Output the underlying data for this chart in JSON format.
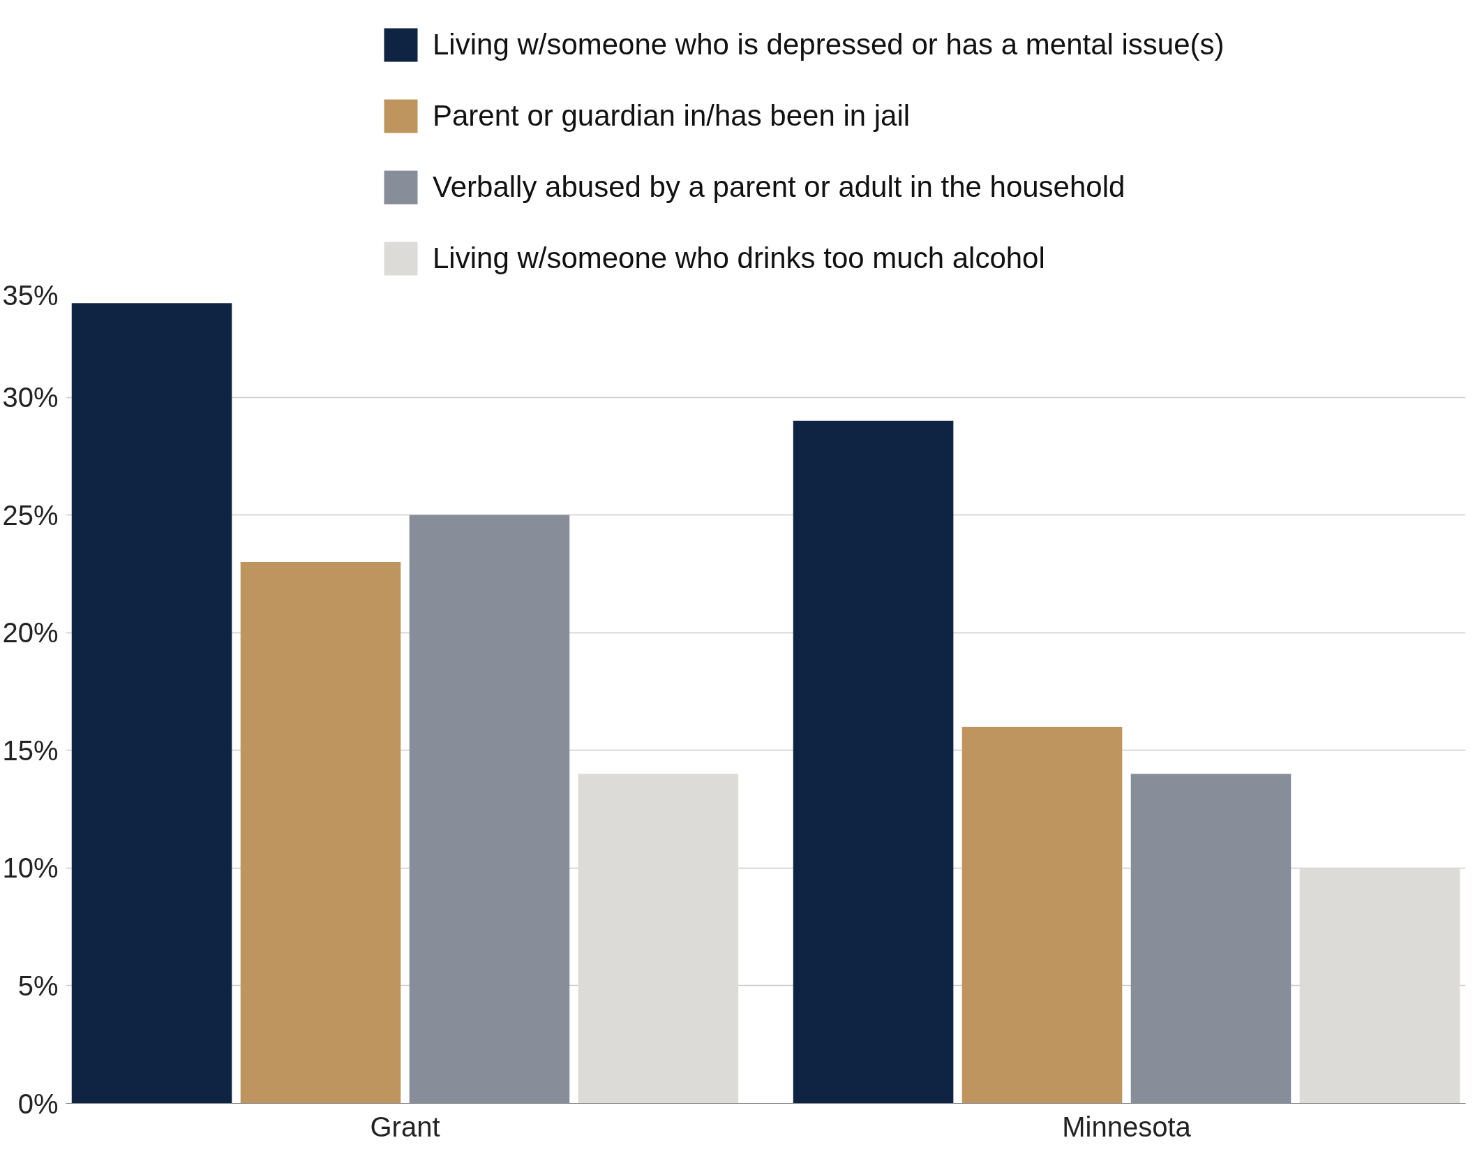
{
  "chart_data": {
    "type": "bar",
    "categories": [
      "Grant",
      "Minnesota"
    ],
    "series": [
      {
        "name": "Living w/someone who is depressed or has a mental issue(s)",
        "color": "#0f2443",
        "values": [
          34,
          29
        ]
      },
      {
        "name": "Parent or guardian in/has been in jail",
        "color": "#be955e",
        "values": [
          23,
          16
        ]
      },
      {
        "name": "Verbally abused by a parent or adult in the household",
        "color": "#878e99",
        "values": [
          25,
          14
        ]
      },
      {
        "name": "Living w/someone who drinks too much alcohol",
        "color": "#dcdbd7",
        "values": [
          14,
          10
        ]
      }
    ],
    "ylim": [
      0,
      35
    ],
    "yticks": [
      {
        "value": 0,
        "label": "0%"
      },
      {
        "value": 5,
        "label": "5%"
      },
      {
        "value": 10,
        "label": "10%"
      },
      {
        "value": 15,
        "label": "15%"
      },
      {
        "value": 20,
        "label": "20%"
      },
      {
        "value": 25,
        "label": "25%"
      },
      {
        "value": 30,
        "label": "30%"
      },
      {
        "value": 35,
        "label": "35%"
      }
    ],
    "grid": "y",
    "legend": "top"
  }
}
